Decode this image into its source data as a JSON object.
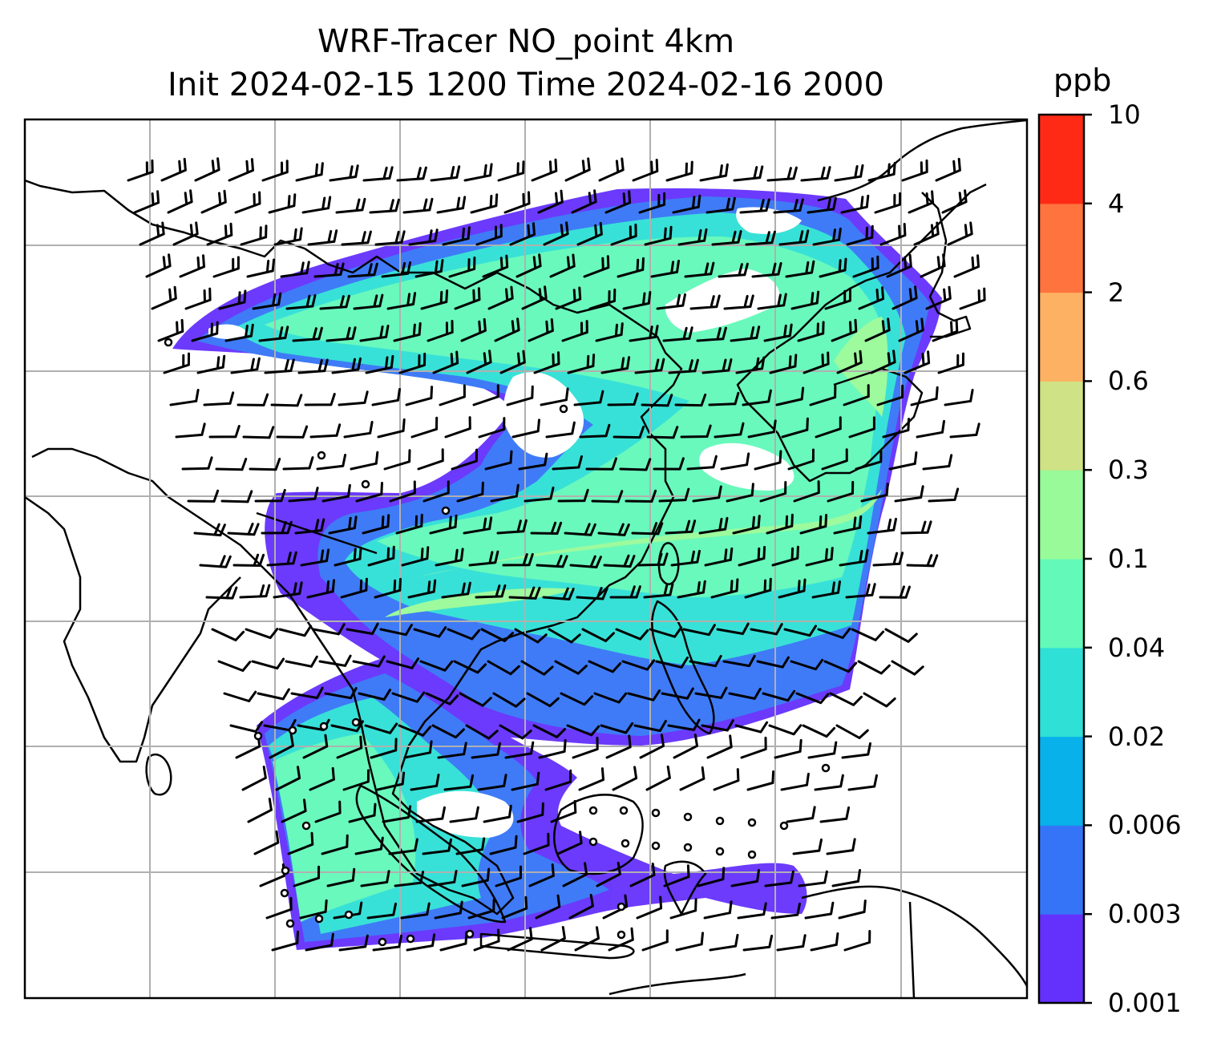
{
  "title": {
    "line1": "WRF-Tracer NO_point 4km",
    "line2": "Init 2024-02-15 1200 Time 2024-02-16 2000"
  },
  "colorbar": {
    "unit": "ppb",
    "levels": [
      "0.001",
      "0.003",
      "0.006",
      "0.02",
      "0.04",
      "0.1",
      "0.3",
      "0.6",
      "2",
      "4",
      "10"
    ],
    "colors": [
      "#6430fc",
      "#3574f7",
      "#08b1ea",
      "#2ee0d5",
      "#62f9b9",
      "#98fa98",
      "#cfe285",
      "#fcb163",
      "#fe733e",
      "#ff2a16"
    ]
  },
  "map": {
    "gridlines": true,
    "coastline_color": "#000000",
    "wind_barbs": true
  }
}
